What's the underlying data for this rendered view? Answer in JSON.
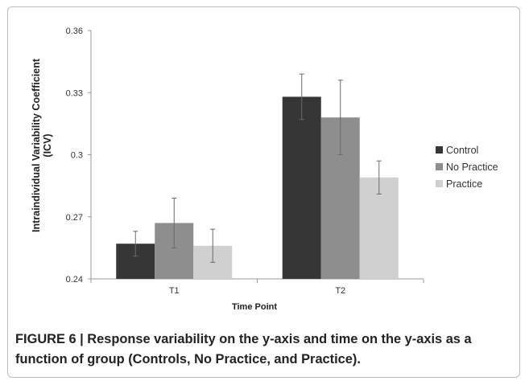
{
  "figure": {
    "caption": "FIGURE 6 | Response variability on the y-axis and time on the y-axis as a function of group (Controls, No Practice, and Practice)."
  },
  "chart_data": {
    "type": "bar",
    "categories": [
      "T1",
      "T2"
    ],
    "series": [
      {
        "name": "Control",
        "color": "#363636",
        "values": [
          0.257,
          0.328
        ],
        "error": [
          0.006,
          0.011
        ]
      },
      {
        "name": "No Practice",
        "color": "#8e8e8e",
        "values": [
          0.267,
          0.318
        ],
        "error": [
          0.012,
          0.018
        ]
      },
      {
        "name": "Practice",
        "color": "#d0d0d0",
        "values": [
          0.256,
          0.289
        ],
        "error": [
          0.008,
          0.008
        ]
      }
    ],
    "yticks": [
      "0.24",
      "0.27",
      "0.3",
      "0.33",
      "0.36"
    ],
    "ylim": [
      0.24,
      0.36
    ],
    "xlabel": "Time Point",
    "ylabel_lines": [
      "Intraindividual Variability Coefficient",
      "(ICV)"
    ],
    "legend": "right",
    "grid": false
  }
}
